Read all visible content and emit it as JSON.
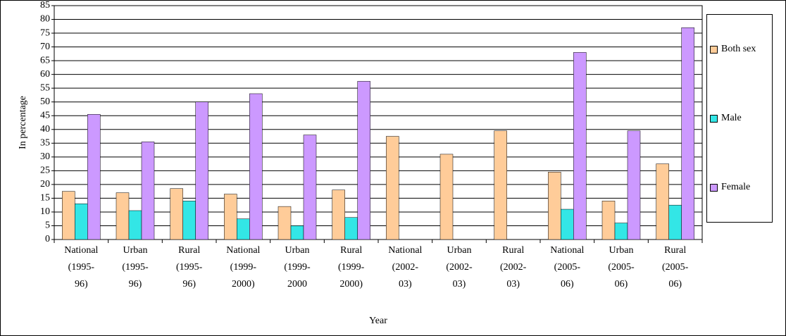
{
  "chart_data": {
    "type": "bar",
    "y_label": "In percentage",
    "x_label": "Year",
    "categories": [
      [
        "National",
        "(1995-",
        "96)"
      ],
      [
        "Urban",
        "(1995-",
        "96)"
      ],
      [
        "Rural",
        "(1995-",
        "96)"
      ],
      [
        "National",
        "(1999-",
        "2000)"
      ],
      [
        "Urban",
        "(1999-",
        "2000"
      ],
      [
        "Rural",
        "(1999-",
        "2000)"
      ],
      [
        "National",
        "(2002-",
        "03)"
      ],
      [
        "Urban",
        "(2002-",
        "03)"
      ],
      [
        "Rural",
        "(2002-",
        "03)"
      ],
      [
        "National",
        "(2005-",
        "06)"
      ],
      [
        "Urban",
        "(2005-",
        "06)"
      ],
      [
        "Rural",
        "(2005-",
        "06)"
      ]
    ],
    "series": [
      {
        "name": "Both sex",
        "color": "#ffcc99",
        "values": [
          17.5,
          17,
          18.5,
          16.5,
          12,
          18,
          37.5,
          31,
          39.5,
          24.5,
          14,
          27.5
        ]
      },
      {
        "name": "Male",
        "color": "#33e6e6",
        "values": [
          13,
          10.5,
          14,
          7.5,
          5,
          8,
          null,
          null,
          null,
          11,
          6,
          12.5
        ]
      },
      {
        "name": "Female",
        "color": "#cc99ff",
        "values": [
          45.5,
          35.5,
          50,
          53,
          38,
          57.5,
          null,
          null,
          null,
          68,
          39.5,
          77
        ]
      }
    ],
    "ylim": [
      0,
      85
    ],
    "yticks": [
      0,
      5,
      10,
      15,
      20,
      25,
      30,
      35,
      40,
      45,
      50,
      55,
      60,
      65,
      70,
      75,
      80,
      85
    ],
    "grid": true,
    "legend": "right"
  }
}
